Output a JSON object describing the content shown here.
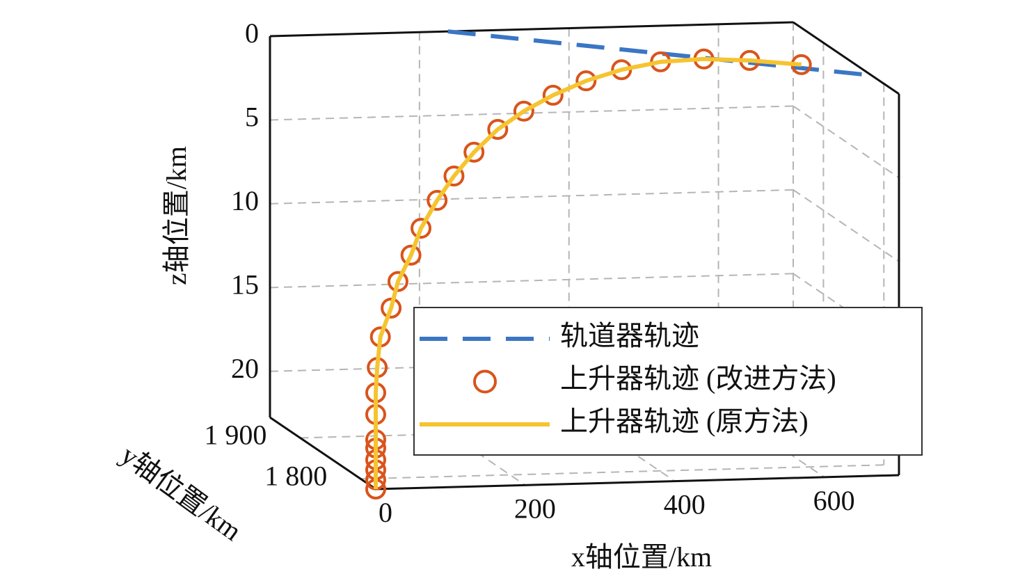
{
  "chart_data": {
    "type": "line3d",
    "xlabel": "x轴位置/km",
    "ylabel": "y轴位置/km",
    "zlabel": "z轴位置/km",
    "xlim": [
      0,
      700
    ],
    "ylim": [
      1775,
      1950
    ],
    "zlim": [
      0,
      22.75
    ],
    "xticks": [
      0,
      200,
      400,
      600
    ],
    "yticks": [
      {
        "value": 1800,
        "label": "1 800"
      },
      {
        "value": 1900,
        "label": "1 900"
      }
    ],
    "zticks": [
      0,
      5,
      10,
      15,
      20
    ],
    "grid": true,
    "legend": "center right",
    "series": [
      {
        "name": "轨道器轨迹",
        "color": "#3a76c4",
        "style": "dashed",
        "x": [
          238,
          468,
          698
        ],
        "y": [
          1950,
          1885.5,
          1821
        ],
        "z": [
          0,
          0,
          0
        ]
      },
      {
        "name": "上升器轨迹 (改进方法)",
        "color": "#d9541a",
        "style": "markers",
        "x": [
          0,
          0,
          0,
          0,
          0,
          0,
          0,
          0,
          2,
          7,
          23,
          33,
          52,
          67,
          91,
          116,
          146,
          181,
          220,
          276,
          338,
          400,
          461,
          519,
          573,
          630
        ],
        "y": [
          1775,
          1775,
          1775,
          1775,
          1775,
          1775,
          1775,
          1775,
          1775,
          1776,
          1778,
          1779,
          1781,
          1783,
          1786,
          1789,
          1793,
          1797,
          1802,
          1823,
          1845,
          1863,
          1874,
          1874,
          1865,
          1850
        ],
        "z": [
          22.75,
          22.2,
          21.6,
          21.0,
          20.3,
          19.8,
          18.3,
          17.0,
          15.5,
          13.7,
          12.05,
          10.5,
          9.0,
          7.46,
          5.9,
          4.55,
          3.26,
          2.04,
          1.12,
          0.75,
          0.5,
          0.35,
          0.22,
          0.12,
          0.05,
          0
        ]
      },
      {
        "name": "上升器轨迹 (原方法)",
        "color": "#f5c431",
        "style": "solid",
        "x": [
          0,
          0,
          0,
          0,
          0,
          0,
          0,
          0,
          2,
          7,
          23,
          33,
          52,
          67,
          91,
          116,
          146,
          181,
          220,
          276,
          338,
          400,
          461,
          519,
          573,
          630
        ],
        "y": [
          1775,
          1775,
          1775,
          1775,
          1775,
          1775,
          1775,
          1775,
          1775,
          1776,
          1778,
          1779,
          1781,
          1783,
          1786,
          1789,
          1793,
          1797,
          1802,
          1823,
          1845,
          1863,
          1874,
          1874,
          1865,
          1850
        ],
        "z": [
          22.75,
          22.2,
          21.6,
          21.0,
          20.3,
          19.8,
          18.3,
          17.0,
          15.5,
          13.7,
          12.05,
          10.5,
          9.0,
          7.46,
          5.9,
          4.55,
          3.26,
          2.04,
          1.12,
          0.75,
          0.5,
          0.35,
          0.22,
          0.12,
          0.05,
          0
        ]
      }
    ]
  }
}
